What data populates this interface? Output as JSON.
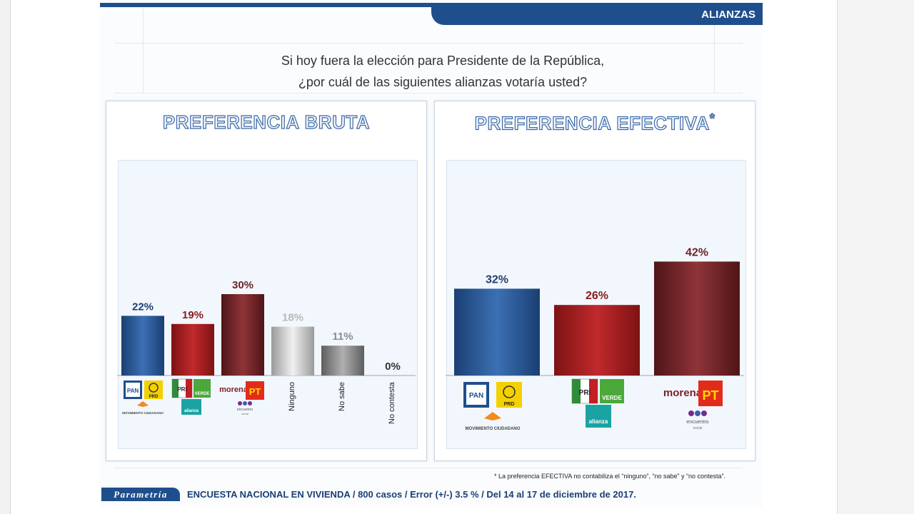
{
  "header": {
    "tab_label": "ALIANZAS"
  },
  "question": {
    "line1": "Si hoy fuera la elección para Presidente de la República,",
    "line2": "¿por cuál de las siguientes alianzas votaría usted?"
  },
  "chart_data": [
    {
      "type": "bar",
      "title": "PREFERENCIA BRUTA",
      "categories": [
        "PAN / PRD / Movimiento Ciudadano",
        "PRI / Verde / Nueva Alianza",
        "Morena / PT / Encuentro Social",
        "Ninguno",
        "No sabe",
        "No contesta"
      ],
      "values": [
        22,
        19,
        30,
        18,
        11,
        0
      ],
      "data_labels": [
        "22%",
        "19%",
        "30%",
        "18%",
        "11%",
        "0%"
      ],
      "text_categories": [
        "Ninguno",
        "No sabe",
        "No contesta"
      ],
      "colors": [
        "#1f4e8c",
        "#9b1b1e",
        "#6e2327",
        "#d0d0d0",
        "#8c8c8c",
        "#d0d0d0"
      ],
      "label_colors": [
        "#1f3f6e",
        "#8b1a1a",
        "#6e2327",
        "#b8b8b8",
        "#8c8c8c",
        "#333333"
      ],
      "ylim": [
        0,
        80
      ],
      "grid": false
    },
    {
      "type": "bar",
      "title": "PREFERENCIA EFECTIVA",
      "title_mark": "*",
      "categories": [
        "PAN / PRD / Movimiento Ciudadano",
        "PRI / Verde / Nueva Alianza",
        "Morena / PT / Encuentro Social"
      ],
      "values": [
        32,
        26,
        42
      ],
      "data_labels": [
        "32%",
        "26%",
        "42%"
      ],
      "colors": [
        "#1f4e8c",
        "#9b1b1e",
        "#6e2327"
      ],
      "label_colors": [
        "#1f3f6e",
        "#8b1a1a",
        "#6e2327"
      ],
      "ylim": [
        0,
        80
      ],
      "grid": false
    }
  ],
  "logos": {
    "pan": "PAN",
    "prd": "PRD",
    "mc": "MOVIMIENTO CIUDADANO",
    "pri": "PRI",
    "verde": "VERDE",
    "alianza": "alianza",
    "morena": "morena",
    "pt": "PT",
    "encuentro": "encuentro",
    "social": "social"
  },
  "footnote": "* La preferencia EFECTIVA no contabiliza el “ninguno”, “no sabe” y “no contesta”.",
  "footer": {
    "brand": "Parametría",
    "text": "ENCUESTA NACIONAL EN VIVIENDA / 800 casos / Error (+/-) 3.5 % / Del 14 al 17 de diciembre de 2017."
  }
}
